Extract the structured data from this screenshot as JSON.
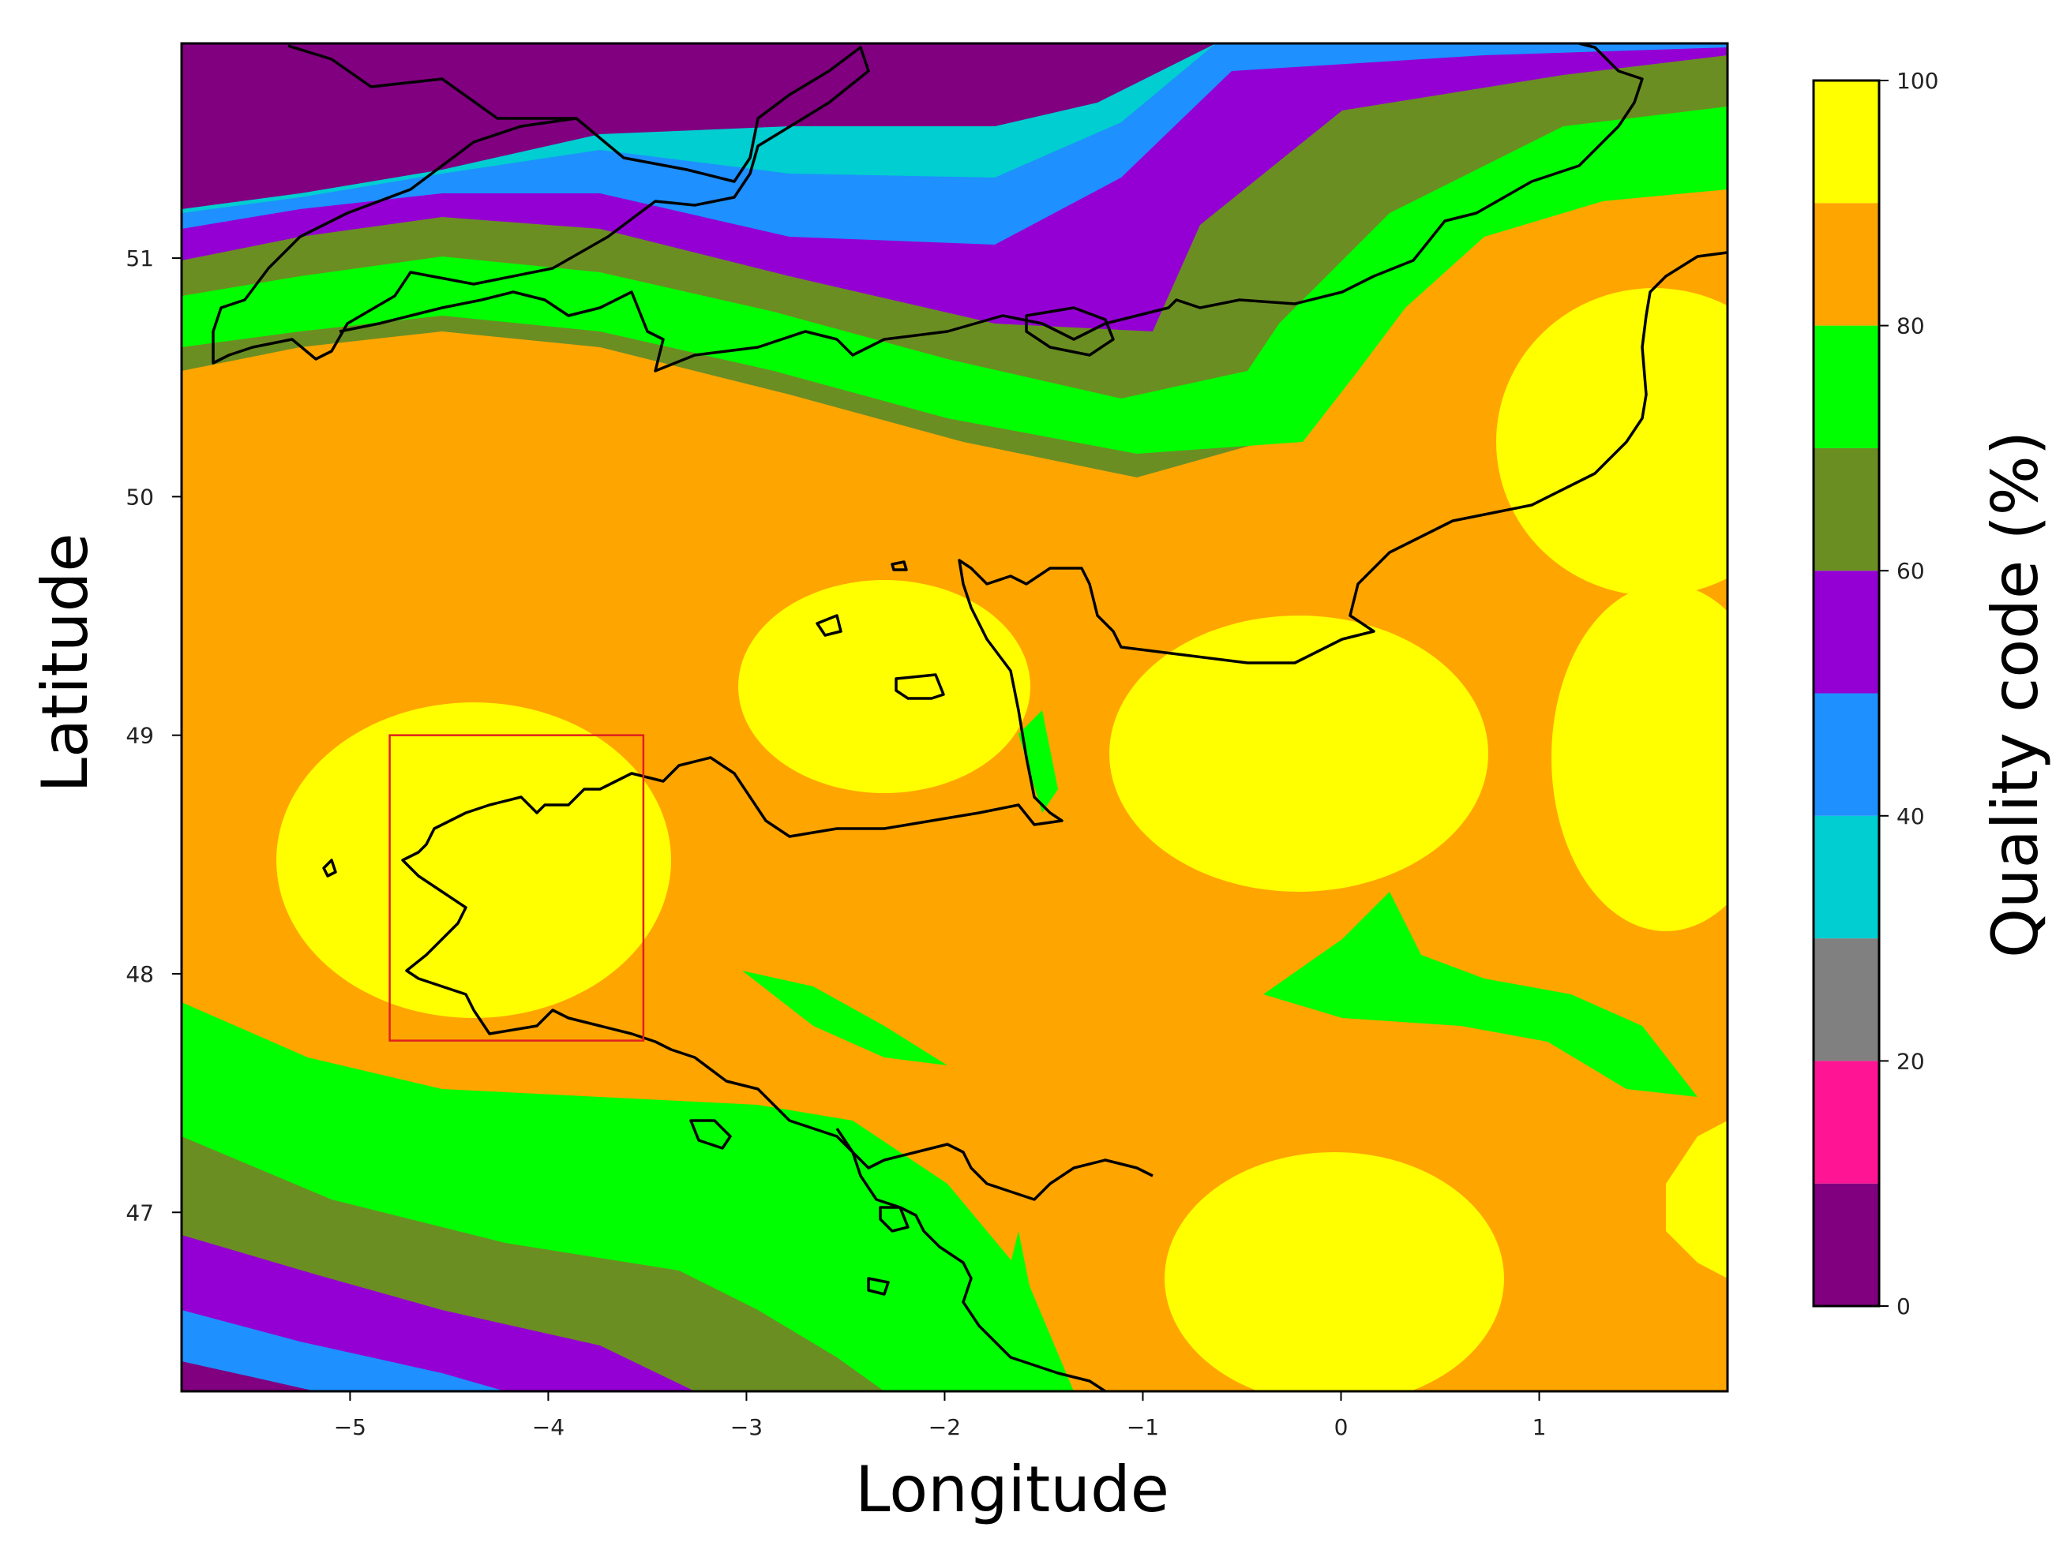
{
  "map": {
    "xlabel": "Longitude",
    "ylabel": "Latitude",
    "xlim": [
      -5.85,
      1.95
    ],
    "ylim": [
      46.25,
      51.9
    ],
    "xticks": [
      {
        "value": -5,
        "label": "−5"
      },
      {
        "value": -4,
        "label": "−4"
      },
      {
        "value": -3,
        "label": "−3"
      },
      {
        "value": -2,
        "label": "−2"
      },
      {
        "value": -1,
        "label": "−1"
      },
      {
        "value": 0,
        "label": "0"
      },
      {
        "value": 1,
        "label": "1"
      }
    ],
    "yticks": [
      {
        "value": 47,
        "label": "47"
      },
      {
        "value": 48,
        "label": "48"
      },
      {
        "value": 49,
        "label": "49"
      },
      {
        "value": 50,
        "label": "50"
      },
      {
        "value": 51,
        "label": "51"
      }
    ],
    "highlight_box": {
      "lon": [
        -4.8,
        -3.52
      ],
      "lat": [
        47.72,
        49.0
      ],
      "color": "#e0201e"
    },
    "coastline_color": "#000000"
  },
  "colorbar": {
    "label": "Quality code (%)",
    "range": [
      0,
      100
    ],
    "ticks": [
      {
        "value": 0,
        "label": "0"
      },
      {
        "value": 20,
        "label": "20"
      },
      {
        "value": 40,
        "label": "40"
      },
      {
        "value": 60,
        "label": "60"
      },
      {
        "value": 80,
        "label": "80"
      },
      {
        "value": 100,
        "label": "100"
      }
    ],
    "bins": [
      {
        "from": 0,
        "to": 10,
        "color": "#800080"
      },
      {
        "from": 10,
        "to": 20,
        "color": "#ff1493"
      },
      {
        "from": 20,
        "to": 30,
        "color": "#808080"
      },
      {
        "from": 30,
        "to": 40,
        "color": "#00ced1"
      },
      {
        "from": 40,
        "to": 50,
        "color": "#1e90ff"
      },
      {
        "from": 50,
        "to": 60,
        "color": "#9400d3"
      },
      {
        "from": 60,
        "to": 70,
        "color": "#6b8e23"
      },
      {
        "from": 70,
        "to": 80,
        "color": "#00ff00"
      },
      {
        "from": 80,
        "to": 90,
        "color": "#ffa500"
      },
      {
        "from": 90,
        "to": 100,
        "color": "#ffff00"
      }
    ]
  }
}
